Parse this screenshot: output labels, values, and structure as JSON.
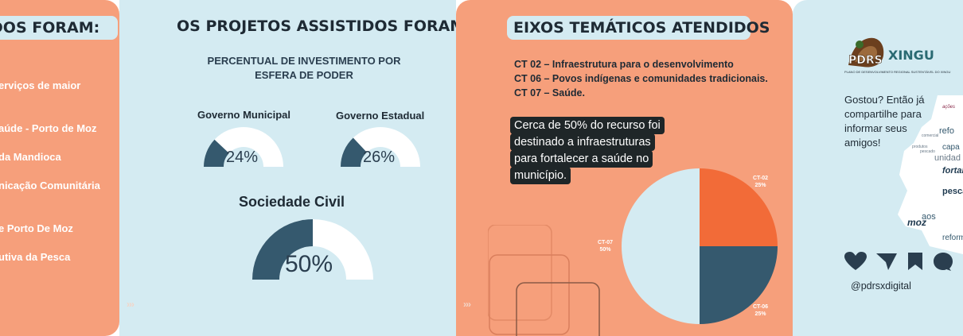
{
  "panel1": {
    "title": "TIDOS FORAM:",
    "items": [
      "erviços de maior",
      "aúde - Porto de Moz",
      "da Mandioca",
      "nicação Comunitária",
      "e Porto De Moz",
      "utiva da Pesca"
    ]
  },
  "panel2": {
    "title": "OS PROJETOS ASSISTIDOS FORAM:",
    "subtitle_line1": "PERCENTUAL DE INVESTIMENTO POR",
    "subtitle_line2": "ESFERA DE PODER",
    "gauges": [
      {
        "label": "Governo Municipal",
        "value_text": "24%",
        "value": 24
      },
      {
        "label": "Governo Estadual",
        "value_text": "26%",
        "value": 26
      },
      {
        "label": "Sociedade Civil",
        "value_text": "50%",
        "value": 50
      }
    ],
    "arrows": "›››"
  },
  "panel3": {
    "title": "EIXOS TEMÁTICOS ATENDIDOS",
    "ct_lines": [
      "CT 02 – Infraestrutura para o desenvolvimento",
      "CT 06 – Povos indígenas e comunidades tradicionais.",
      "CT 07 – Saúde."
    ],
    "callout": [
      "Cerca de 50% do recurso foi",
      "destinado a infraestruturas",
      "para fortalecer a saúde no",
      "município."
    ],
    "arrows": "›››",
    "chart_data": {
      "type": "pie",
      "categories": [
        "CT-02",
        "CT-06",
        "CT-07"
      ],
      "values": [
        25,
        25,
        50
      ],
      "labels": [
        "25%",
        "25%",
        "50%"
      ],
      "colors": [
        "#f26b38",
        "#35596e",
        "#d4ebf2"
      ]
    }
  },
  "panel4": {
    "logo_main": "XINGU",
    "logo_letters": "PDRS",
    "logo_sub": "PLANO DE DESENVOLVIMENTO REGIONAL SUSTENTÁVEL DO XINGU",
    "share_lines": [
      "Gostou? Então já",
      "compartilhe para",
      "informar seus",
      "amigos!"
    ],
    "handle": "@pdrsxdigital",
    "icons": [
      "heart-icon",
      "send-icon",
      "bookmark-icon",
      "comment-icon"
    ],
    "cloud_words": [
      "ações",
      "refo",
      "capa",
      "unidad",
      "fortal",
      "pesca",
      "aos",
      "moz",
      "reform",
      "produtos",
      "pescado",
      "comercial"
    ]
  }
}
